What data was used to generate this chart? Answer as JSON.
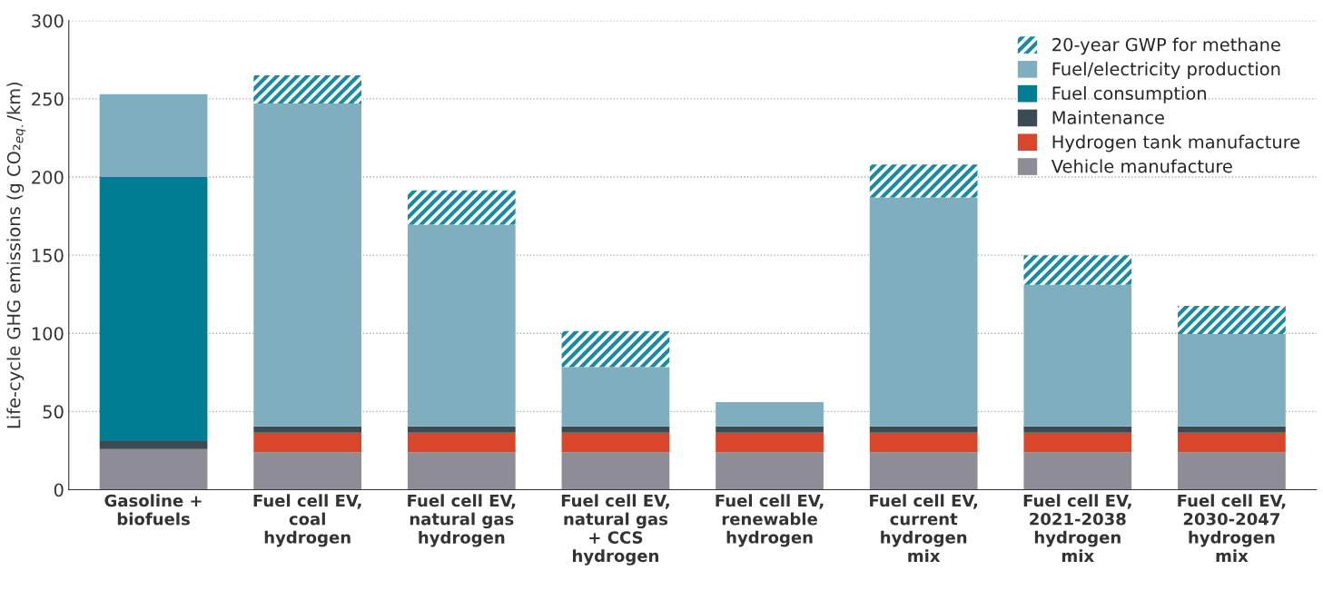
{
  "chart_data": {
    "type": "bar",
    "stacked": true,
    "categories": [
      "Gasoline +\nbiofuels",
      "Fuel cell EV,\ncoal\nhydrogen",
      "Fuel cell EV,\nnatural gas\nhydrogen",
      "Fuel cell EV,\nnatural gas\n+ CCS\nhydrogen",
      "Fuel cell EV,\nrenewable\nhydrogen",
      "Fuel cell EV,\ncurrent\nhydrogen\nmix",
      "Fuel cell EV,\n2021-2038\nhydrogen\nmix",
      "Fuel cell EV,\n2030-2047\nhydrogen\nmix"
    ],
    "ylabel": "Life-cycle GHG emissions (g CO₂$_{eq.}$/km)",
    "ylim": [
      0,
      300
    ],
    "yticks": [
      0,
      50,
      100,
      150,
      200,
      250,
      300
    ],
    "grid": "y",
    "legend": "top right",
    "series": [
      {
        "name": "Vehicle manufacture",
        "color": "#8e8c96",
        "values": [
          26,
          24,
          24,
          24,
          24,
          24,
          24,
          24
        ]
      },
      {
        "name": "Hydrogen tank manufacture",
        "color": "#d9472b",
        "values": [
          null,
          12.5,
          12.5,
          12.5,
          12.5,
          12.5,
          12.5,
          12.5
        ]
      },
      {
        "name": "Maintenance",
        "color": "#3c4a54",
        "values": [
          5,
          4,
          4,
          4,
          4,
          4,
          4,
          4
        ]
      },
      {
        "name": "Fuel consumption",
        "color": "#007d92",
        "values": [
          169,
          null,
          null,
          null,
          null,
          null,
          null,
          null
        ]
      },
      {
        "name": "Fuel/electricity production",
        "color": "#7fafbe",
        "values": [
          53,
          206.5,
          129,
          38,
          15.5,
          146.5,
          90.5,
          59
        ]
      },
      {
        "name": "20-year GWP for methane",
        "color": "#1a8aa0",
        "values": [
          null,
          18,
          22,
          23,
          null,
          21,
          19,
          18
        ]
      }
    ]
  }
}
